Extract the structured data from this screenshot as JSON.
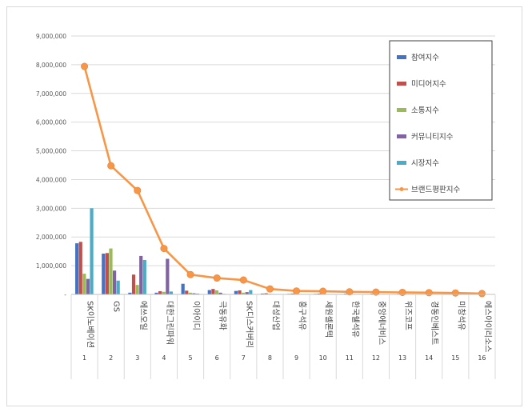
{
  "chart_data": {
    "type": "bar",
    "categories": [
      "SK이노베이션",
      "GS",
      "에쓰오일",
      "대한그린파워",
      "이아이디",
      "극동유화",
      "SK디스커버리",
      "대성산업",
      "흥구석유",
      "세원셀론텍",
      "한국쉘석유",
      "중앙에너비스",
      "위즈코프",
      "경동인베스트",
      "미창석유",
      "에스아이리소스"
    ],
    "index_labels": [
      "1",
      "2",
      "3",
      "4",
      "5",
      "6",
      "7",
      "8",
      "9",
      "10",
      "11",
      "12",
      "13",
      "14",
      "15",
      "16"
    ],
    "ylim": [
      0,
      9000000
    ],
    "yticks": [
      0,
      1000000,
      2000000,
      3000000,
      4000000,
      5000000,
      6000000,
      7000000,
      8000000,
      9000000
    ],
    "ytick_labels": [
      "-",
      "1,000,000",
      "2,000,000",
      "3,000,000",
      "4,000,000",
      "5,000,000",
      "6,000,000",
      "7,000,000",
      "8,000,000",
      "9,000,000"
    ],
    "grid": true,
    "legend_position": "top-right",
    "series": [
      {
        "name": "참여지수",
        "kind": "bar",
        "color": "#4472c4",
        "values": [
          1780000,
          1420000,
          60000,
          60000,
          370000,
          150000,
          120000,
          30000,
          20000,
          20000,
          15000,
          15000,
          10000,
          10000,
          10000,
          8000
        ]
      },
      {
        "name": "미디어지수",
        "kind": "bar",
        "color": "#c0504d",
        "values": [
          1830000,
          1440000,
          690000,
          110000,
          130000,
          190000,
          140000,
          40000,
          30000,
          30000,
          25000,
          25000,
          20000,
          15000,
          15000,
          10000
        ]
      },
      {
        "name": "소통지수",
        "kind": "bar",
        "color": "#9bbb59",
        "values": [
          720000,
          1600000,
          330000,
          90000,
          60000,
          140000,
          60000,
          20000,
          15000,
          15000,
          10000,
          10000,
          10000,
          8000,
          8000,
          5000
        ]
      },
      {
        "name": "커뮤니티지수",
        "kind": "bar",
        "color": "#8064a2",
        "values": [
          540000,
          830000,
          1340000,
          1240000,
          40000,
          60000,
          80000,
          15000,
          10000,
          10000,
          10000,
          8000,
          8000,
          6000,
          6000,
          5000
        ]
      },
      {
        "name": "시장지수",
        "kind": "bar",
        "color": "#4bacc6",
        "values": [
          3000000,
          480000,
          1200000,
          100000,
          30000,
          20000,
          150000,
          10000,
          8000,
          8000,
          6000,
          6000,
          5000,
          5000,
          4000,
          4000
        ]
      },
      {
        "name": "브랜드평판지수",
        "kind": "line",
        "color": "#f79646",
        "values": [
          7940000,
          4480000,
          3620000,
          1600000,
          690000,
          570000,
          500000,
          190000,
          120000,
          110000,
          90000,
          80000,
          70000,
          60000,
          50000,
          30000
        ]
      }
    ]
  }
}
